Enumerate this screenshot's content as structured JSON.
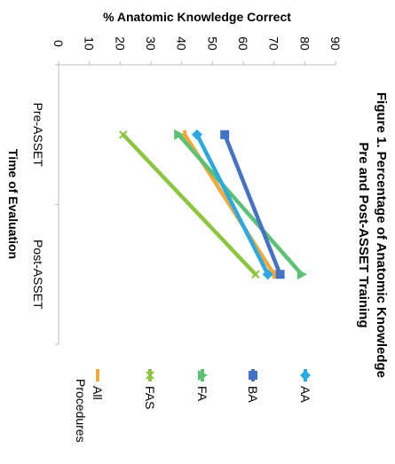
{
  "chart_data": {
    "type": "line",
    "title": "Figure 1. Percentage of Anatomic Knowledge Pre and Post-ASSET Training",
    "title_lines": [
      "Figure 1. Percentage of Anatomic Knowledge",
      "Pre and Post-ASSET Training"
    ],
    "ylabel": "% Anatomic Knowledge Correct",
    "xlabel": "Time of Evaluation",
    "categories": [
      "Pre-ASSET",
      "Post-ASSET"
    ],
    "ylim": [
      0,
      90
    ],
    "yticks": [
      0,
      10,
      20,
      30,
      40,
      50,
      60,
      70,
      80,
      90
    ],
    "orientation": "rotated-90-clockwise",
    "legend_position": "bottom",
    "series": [
      {
        "name": "AA",
        "values": [
          45,
          68
        ],
        "color": "#29ABE2",
        "marker": "diamond"
      },
      {
        "name": "BA",
        "values": [
          54,
          72
        ],
        "color": "#4472C4",
        "marker": "square"
      },
      {
        "name": "FA",
        "values": [
          39,
          79
        ],
        "color": "#5BC274",
        "marker": "triangle"
      },
      {
        "name": "FAS",
        "values": [
          21,
          64
        ],
        "color": "#8CC63F",
        "marker": "x"
      },
      {
        "name": "All Procedures",
        "values": [
          41,
          70
        ],
        "color": "#F5A83A",
        "marker": "bar"
      }
    ]
  }
}
